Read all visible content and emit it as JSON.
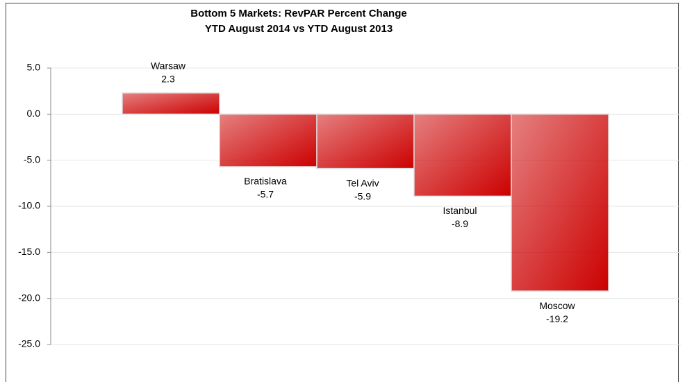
{
  "chart_data": {
    "type": "bar",
    "title": "Bottom 5 Markets: RevPAR Percent Change",
    "subtitle": "YTD August 2014 vs YTD August 2013",
    "categories": [
      "Warsaw",
      "Bratislava",
      "Tel Aviv",
      "Istanbul",
      "Moscow"
    ],
    "values": [
      2.3,
      -5.7,
      -5.9,
      -8.9,
      -19.2
    ],
    "color": "#cc0000",
    "ylim": [
      -25,
      5
    ],
    "yticks": [
      {
        "value": 5,
        "label": "5.0"
      },
      {
        "value": 0,
        "label": "0.0"
      },
      {
        "value": -5,
        "label": "-5.0"
      },
      {
        "value": -10,
        "label": "-10.0"
      },
      {
        "value": -15,
        "label": "-15.0"
      },
      {
        "value": -20,
        "label": "-20.0"
      },
      {
        "value": -25,
        "label": "-25.0"
      }
    ],
    "grid": true
  }
}
